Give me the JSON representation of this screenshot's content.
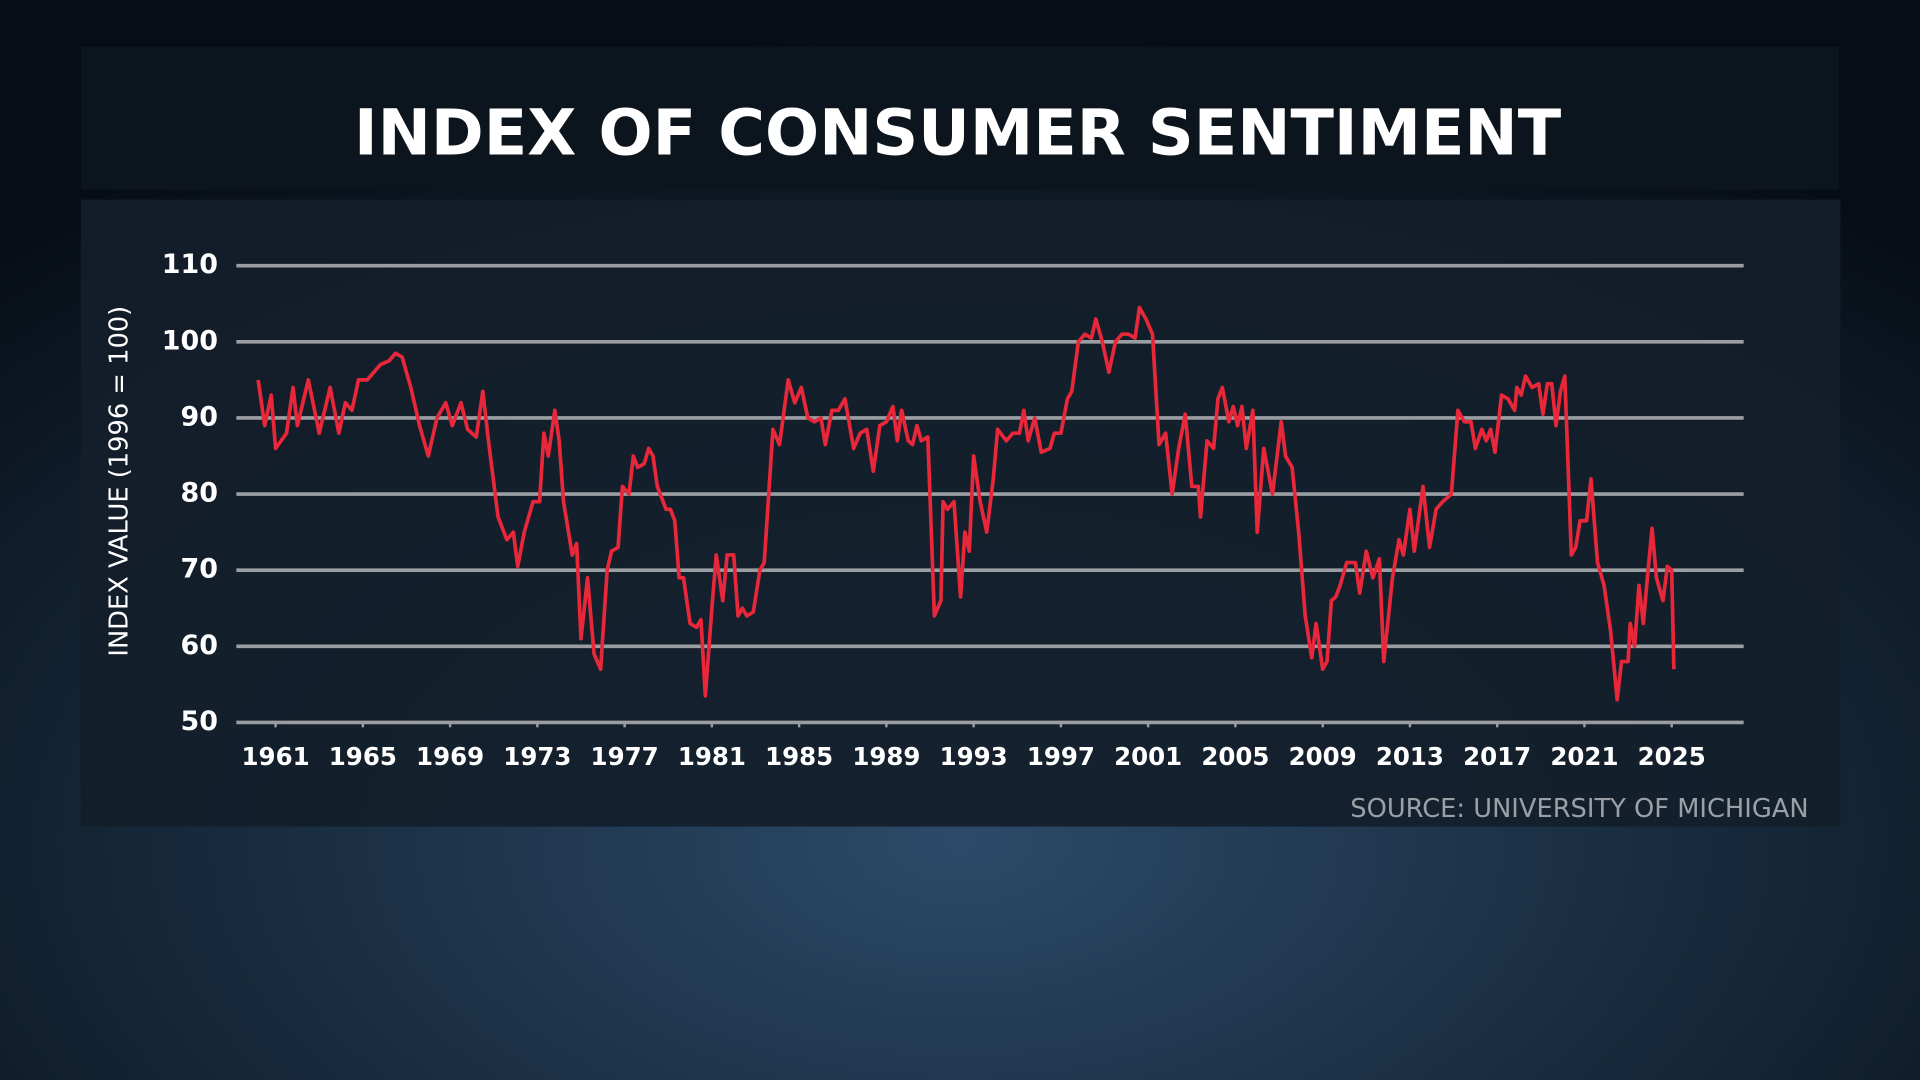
{
  "chart_data": {
    "type": "line",
    "title": "INDEX OF CONSUMER SENTIMENT",
    "y_label": "INDEX VALUE (1996 = 100)",
    "source": "SOURCE:  UNIVERSITY OF MICHIGAN",
    "color": "#e8283a",
    "grid": true,
    "xlim": [
      1959.2,
      2028.3
    ],
    "ylim": [
      50,
      110
    ],
    "xticks": [
      1961,
      1965,
      1969,
      1973,
      1977,
      1981,
      1985,
      1989,
      1993,
      1997,
      2001,
      2005,
      2009,
      2013,
      2017,
      2021,
      2025
    ],
    "yticks": [
      50,
      60,
      70,
      80,
      90,
      100,
      110
    ],
    "x": [
      1960.2,
      1960.5,
      1960.8,
      1961.0,
      1961.5,
      1961.8,
      1962.0,
      1962.5,
      1963.0,
      1963.5,
      1963.9,
      1964.2,
      1964.5,
      1964.8,
      1965.2,
      1965.5,
      1965.8,
      1966.2,
      1966.5,
      1966.8,
      1967.2,
      1967.6,
      1968.0,
      1968.4,
      1968.8,
      1969.1,
      1969.5,
      1969.8,
      1970.2,
      1970.5,
      1970.8,
      1971.2,
      1971.6,
      1971.9,
      1972.1,
      1972.4,
      1972.8,
      1973.1,
      1973.3,
      1973.5,
      1973.8,
      1974.0,
      1974.2,
      1974.6,
      1974.8,
      1975.0,
      1975.3,
      1975.6,
      1975.9,
      1976.2,
      1976.4,
      1976.7,
      1976.9,
      1977.2,
      1977.4,
      1977.6,
      1977.9,
      1978.1,
      1978.3,
      1978.5,
      1978.9,
      1979.1,
      1979.3,
      1979.5,
      1979.7,
      1980.0,
      1980.3,
      1980.5,
      1980.7,
      1981.0,
      1981.2,
      1981.5,
      1981.7,
      1982.0,
      1982.2,
      1982.4,
      1982.6,
      1982.9,
      1983.2,
      1983.4,
      1983.8,
      1984.1,
      1984.5,
      1984.8,
      1985.1,
      1985.4,
      1985.7,
      1986.0,
      1986.2,
      1986.5,
      1986.8,
      1987.1,
      1987.5,
      1987.8,
      1988.1,
      1988.4,
      1988.7,
      1989.0,
      1989.3,
      1989.5,
      1989.7,
      1990.0,
      1990.2,
      1990.4,
      1990.6,
      1990.9,
      1991.2,
      1991.5,
      1991.6,
      1991.8,
      1992.1,
      1992.4,
      1992.6,
      1992.8,
      1993.0,
      1993.3,
      1993.6,
      1993.9,
      1994.1,
      1994.5,
      1994.8,
      1995.1,
      1995.3,
      1995.5,
      1995.8,
      1996.1,
      1996.5,
      1996.7,
      1997.0,
      1997.3,
      1997.5,
      1997.8,
      1998.1,
      1998.4,
      1998.6,
      1998.9,
      1999.2,
      1999.5,
      1999.8,
      2000.1,
      2000.4,
      2000.6,
      2000.9,
      2001.2,
      2001.5,
      2001.8,
      2002.1,
      2002.4,
      2002.7,
      2003.0,
      2003.3,
      2003.4,
      2003.7,
      2004.0,
      2004.2,
      2004.4,
      2004.7,
      2004.9,
      2005.1,
      2005.3,
      2005.5,
      2005.8,
      2006.0,
      2006.3,
      2006.7,
      2007.1,
      2007.3,
      2007.6,
      2007.9,
      2008.2,
      2008.5,
      2008.7,
      2009.0,
      2009.2,
      2009.4,
      2009.6,
      2009.8,
      2010.1,
      2010.5,
      2010.7,
      2011.0,
      2011.3,
      2011.6,
      2011.8,
      2012.2,
      2012.5,
      2012.7,
      2013.0,
      2013.2,
      2013.6,
      2013.9,
      2014.2,
      2014.5,
      2014.9,
      2015.2,
      2015.5,
      2015.8,
      2016.0,
      2016.3,
      2016.5,
      2016.7,
      2016.9,
      2017.2,
      2017.5,
      2017.8,
      2017.9,
      2018.1,
      2018.3,
      2018.6,
      2018.9,
      2019.1,
      2019.3,
      2019.5,
      2019.7,
      2019.9,
      2020.1,
      2020.4,
      2020.6,
      2020.8,
      2021.1,
      2021.3,
      2021.6,
      2021.9,
      2022.2,
      2022.5,
      2022.7,
      2023.0,
      2023.1,
      2023.3,
      2023.5,
      2023.7,
      2023.9,
      2024.1,
      2024.3,
      2024.6,
      2024.8,
      2025.0,
      2025.1
    ],
    "values": [
      95,
      89,
      93,
      86,
      88,
      94,
      89,
      95,
      88,
      94,
      88,
      92,
      91,
      95,
      95,
      96,
      97,
      97.5,
      98.5,
      98,
      94,
      89,
      85,
      90,
      92,
      89,
      92,
      88.5,
      87.5,
      93.5,
      86,
      77,
      74,
      75,
      70.5,
      75,
      79,
      79,
      88,
      85,
      91,
      87,
      79,
      72,
      73.5,
      61,
      69,
      59,
      57,
      70,
      72.5,
      73,
      81,
      80,
      85,
      83.5,
      84,
      86,
      85,
      81,
      78,
      78,
      76.5,
      69,
      69,
      63,
      62.5,
      63.5,
      53.5,
      65,
      72,
      66,
      72,
      72,
      64,
      65,
      64,
      64.5,
      70,
      71,
      88.5,
      86.5,
      95,
      92,
      94,
      90,
      89.5,
      90,
      86.5,
      91,
      91,
      92.5,
      86,
      88,
      88.5,
      83,
      89,
      89.5,
      91.5,
      87,
      91,
      87,
      86.5,
      89,
      87,
      87.5,
      64,
      66,
      79,
      78,
      79,
      66.5,
      75,
      72.5,
      85,
      79,
      75,
      82,
      88.5,
      87,
      88,
      88,
      91,
      87,
      90,
      85.5,
      86,
      88,
      88,
      92.5,
      93.5,
      100,
      101,
      100.5,
      103,
      100,
      96,
      100,
      101,
      101,
      100.5,
      104.5,
      103,
      101,
      86.5,
      88,
      80,
      86,
      90.5,
      81,
      81,
      77,
      87,
      86,
      92.5,
      94,
      89.5,
      91.5,
      89,
      91.5,
      86,
      91,
      75,
      86,
      80,
      89.5,
      85,
      83.5,
      75,
      64,
      58.5,
      63,
      57,
      58,
      66,
      66.5,
      68,
      71,
      71,
      67,
      72.5,
      69,
      71.5,
      58,
      69,
      74,
      72,
      78,
      72.5,
      81,
      73,
      78,
      79,
      80,
      91,
      89.5,
      89.5,
      86,
      88.5,
      87,
      88.5,
      85.5,
      93,
      92.5,
      91,
      94,
      93,
      95.5,
      94,
      94.5,
      90.5,
      94.5,
      94.5,
      89,
      93.5,
      95.5,
      72,
      73,
      76.5,
      76.5,
      82,
      71,
      68,
      62,
      53,
      58,
      58,
      63,
      60,
      68,
      63,
      69.5,
      75.5,
      69,
      66,
      70.5,
      70,
      57
    ]
  }
}
